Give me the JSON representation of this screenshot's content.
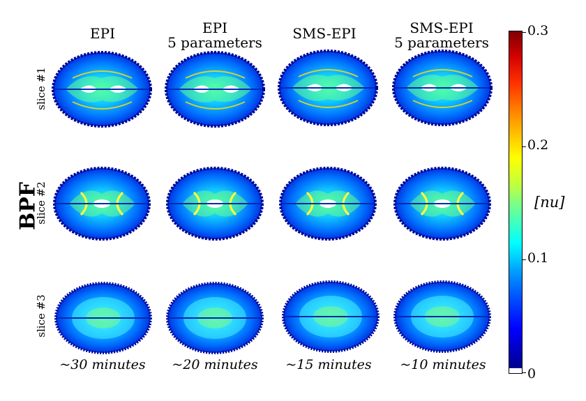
{
  "columns": [
    "EPI",
    "EPI\n5 parameters",
    "SMS-EPI",
    "SMS-EPI\n5 parameters"
  ],
  "rows": [
    "slice #1",
    "slice #2",
    "slice #3"
  ],
  "group_label": "BPF",
  "times": [
    "~30 minutes",
    "~20 minutes",
    "~15 minutes",
    "~10 minutes"
  ],
  "colorbar": {
    "colormap": "jet",
    "ticks": [
      "0.3",
      "0.2",
      "0.1",
      "0"
    ],
    "unit": "[nu]"
  }
}
